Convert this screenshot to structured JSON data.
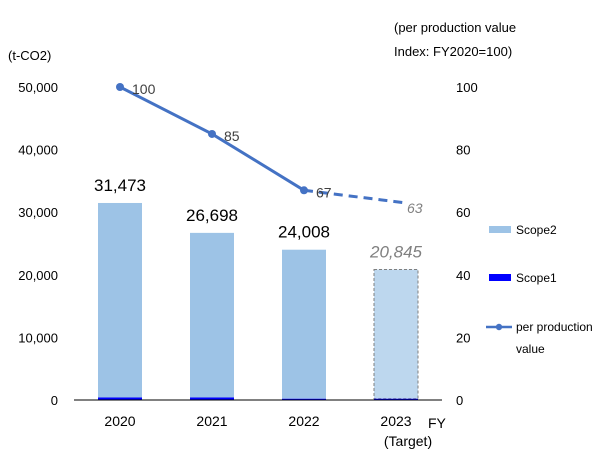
{
  "chart_data": {
    "type": "bar",
    "categories": [
      "2020",
      "2021",
      "2022",
      "2023"
    ],
    "category_sublabels": [
      "",
      "",
      "",
      "(Target)"
    ],
    "x_unit": "FY",
    "y_left": {
      "unit": "(t-CO2)",
      "ylim": [
        0,
        50000
      ],
      "ticks": [
        0,
        10000,
        20000,
        30000,
        40000,
        50000
      ],
      "tick_labels": [
        "0",
        "10,000",
        "20,000",
        "30,000",
        "40,000",
        "50,000"
      ]
    },
    "y_right": {
      "unit_line1": "(per production value",
      "unit_line2": "Index: FY2020=100)",
      "ylim": [
        0,
        100
      ],
      "ticks": [
        0,
        20,
        40,
        60,
        80,
        100
      ],
      "tick_labels": [
        "0",
        "20",
        "40",
        "60",
        "80",
        "100"
      ]
    },
    "series": [
      {
        "name": "Scope2",
        "type": "bar",
        "axis": "left",
        "values": [
          31073,
          26298,
          23808,
          20645
        ]
      },
      {
        "name": "Scope1",
        "type": "bar",
        "axis": "left",
        "values": [
          400,
          400,
          200,
          200
        ]
      },
      {
        "name": "per production value",
        "type": "line",
        "axis": "right",
        "values": [
          100,
          85,
          67,
          63
        ],
        "dashed_from_index": 2
      }
    ],
    "total_labels": [
      "31,473",
      "26,698",
      "24,008",
      "20,845"
    ],
    "line_labels": [
      "100",
      "85",
      "67",
      "63"
    ],
    "target_index": 3,
    "legend": {
      "position": "right",
      "items": [
        {
          "name": "Scope2",
          "label": "Scope2"
        },
        {
          "name": "Scope1",
          "label": "Scope1"
        },
        {
          "name": "per production value",
          "label_line1": "per production",
          "label_line2": "value"
        }
      ]
    },
    "colors": {
      "scope2": "#9dc3e6",
      "scope2_target": "#bdd7ee",
      "scope1": "#0000ff",
      "line": "#4472c4",
      "axis": "#000000",
      "target_label": "#808080",
      "text": "#000000"
    },
    "grid": false
  }
}
